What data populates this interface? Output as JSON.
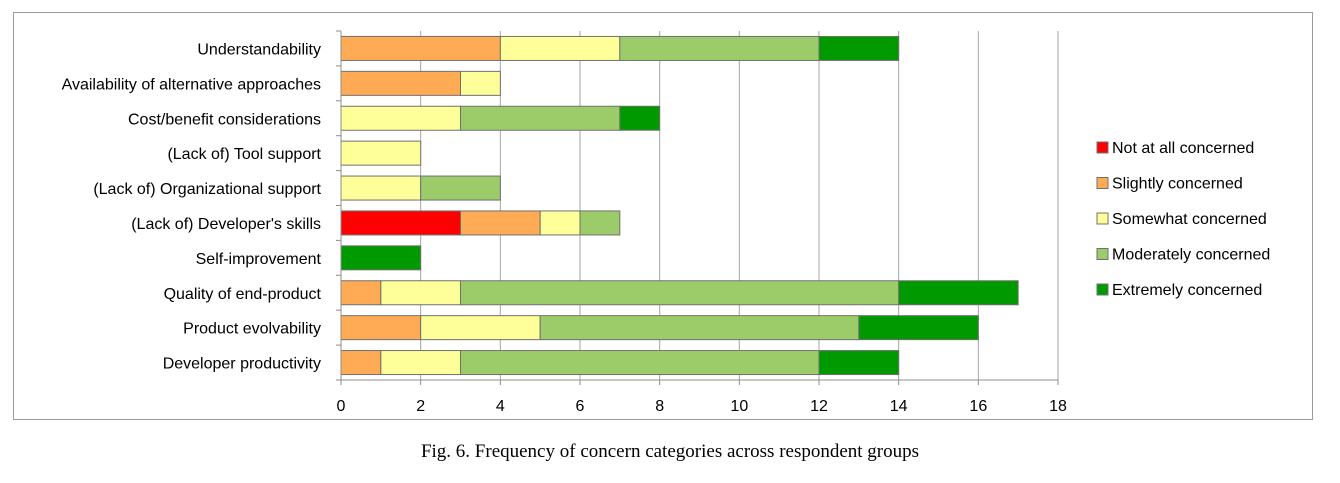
{
  "caption": "Fig. 6.  Frequency of concern categories across respondent groups",
  "chart_data": {
    "type": "bar",
    "orientation": "horizontal",
    "stacked": true,
    "categories": [
      "Understandability",
      "Availability of alternative approaches",
      "Cost/benefit considerations",
      "(Lack of) Tool support",
      "(Lack of) Organizational support",
      "(Lack of) Developer's skills",
      "Self-improvement",
      "Quality of end-product",
      "Product evolvability",
      "Developer productivity"
    ],
    "series": [
      {
        "name": "Not at all concerned",
        "color": "#ff0000",
        "values": [
          0,
          0,
          0,
          0,
          0,
          3,
          0,
          0,
          0,
          0
        ]
      },
      {
        "name": "Slightly concerned",
        "color": "#ffab55",
        "values": [
          4,
          3,
          0,
          0,
          0,
          2,
          0,
          1,
          2,
          1
        ]
      },
      {
        "name": "Somewhat concerned",
        "color": "#ffff99",
        "values": [
          3,
          1,
          3,
          2,
          2,
          1,
          0,
          2,
          3,
          2
        ]
      },
      {
        "name": "Moderately concerned",
        "color": "#9ccc6a",
        "values": [
          5,
          0,
          4,
          0,
          2,
          1,
          0,
          11,
          8,
          9
        ]
      },
      {
        "name": "Extremely concerned",
        "color": "#009a00",
        "values": [
          2,
          0,
          1,
          0,
          0,
          0,
          2,
          3,
          3,
          2
        ]
      }
    ],
    "xlim": [
      0,
      18
    ],
    "xticks": [
      0,
      2,
      4,
      6,
      8,
      10,
      12,
      14,
      16,
      18
    ],
    "grid": true,
    "legend_position": "right",
    "title": "",
    "xlabel": "",
    "ylabel": ""
  }
}
